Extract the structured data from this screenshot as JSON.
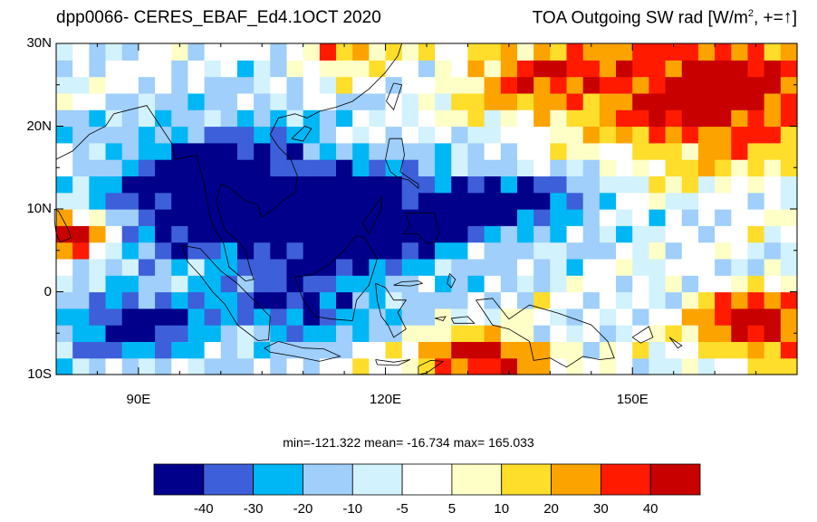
{
  "title": {
    "left": "dpp0066- CERES_EBAF_Ed4.1OCT 2020",
    "right_prefix": "TOA Outgoing SW rad [W/m",
    "right_sup": "2",
    "right_suffix": ", +=",
    "right_arrow": "↑",
    "right_close": "]"
  },
  "axes": {
    "lat_ticks": [
      "30N",
      "20N",
      "10N",
      "0",
      "10S"
    ],
    "lat_values": [
      30,
      20,
      10,
      0,
      -10
    ],
    "lon_ticks": [
      "90E",
      "120E",
      "150E"
    ],
    "lon_values": [
      90,
      120,
      150
    ],
    "lon_range": [
      80,
      170
    ],
    "lat_range": [
      -10,
      30
    ]
  },
  "stats": {
    "text": "min=-121.322  mean= -16.734  max= 165.033",
    "min": -121.322,
    "mean": -16.734,
    "max": 165.033
  },
  "colorbar": {
    "labels": [
      "-40",
      "-30",
      "-20",
      "-10",
      "-5",
      "5",
      "10",
      "20",
      "30",
      "40"
    ],
    "colors": [
      "#00008b",
      "#3d5fd9",
      "#00b7f5",
      "#9fcffa",
      "#d2f2fd",
      "#ffffff",
      "#fefec7",
      "#fedd2b",
      "#fca300",
      "#ff1a00",
      "#c80000"
    ]
  },
  "colors": {
    "land_outline": "#000000",
    "frame": "#000000"
  }
}
